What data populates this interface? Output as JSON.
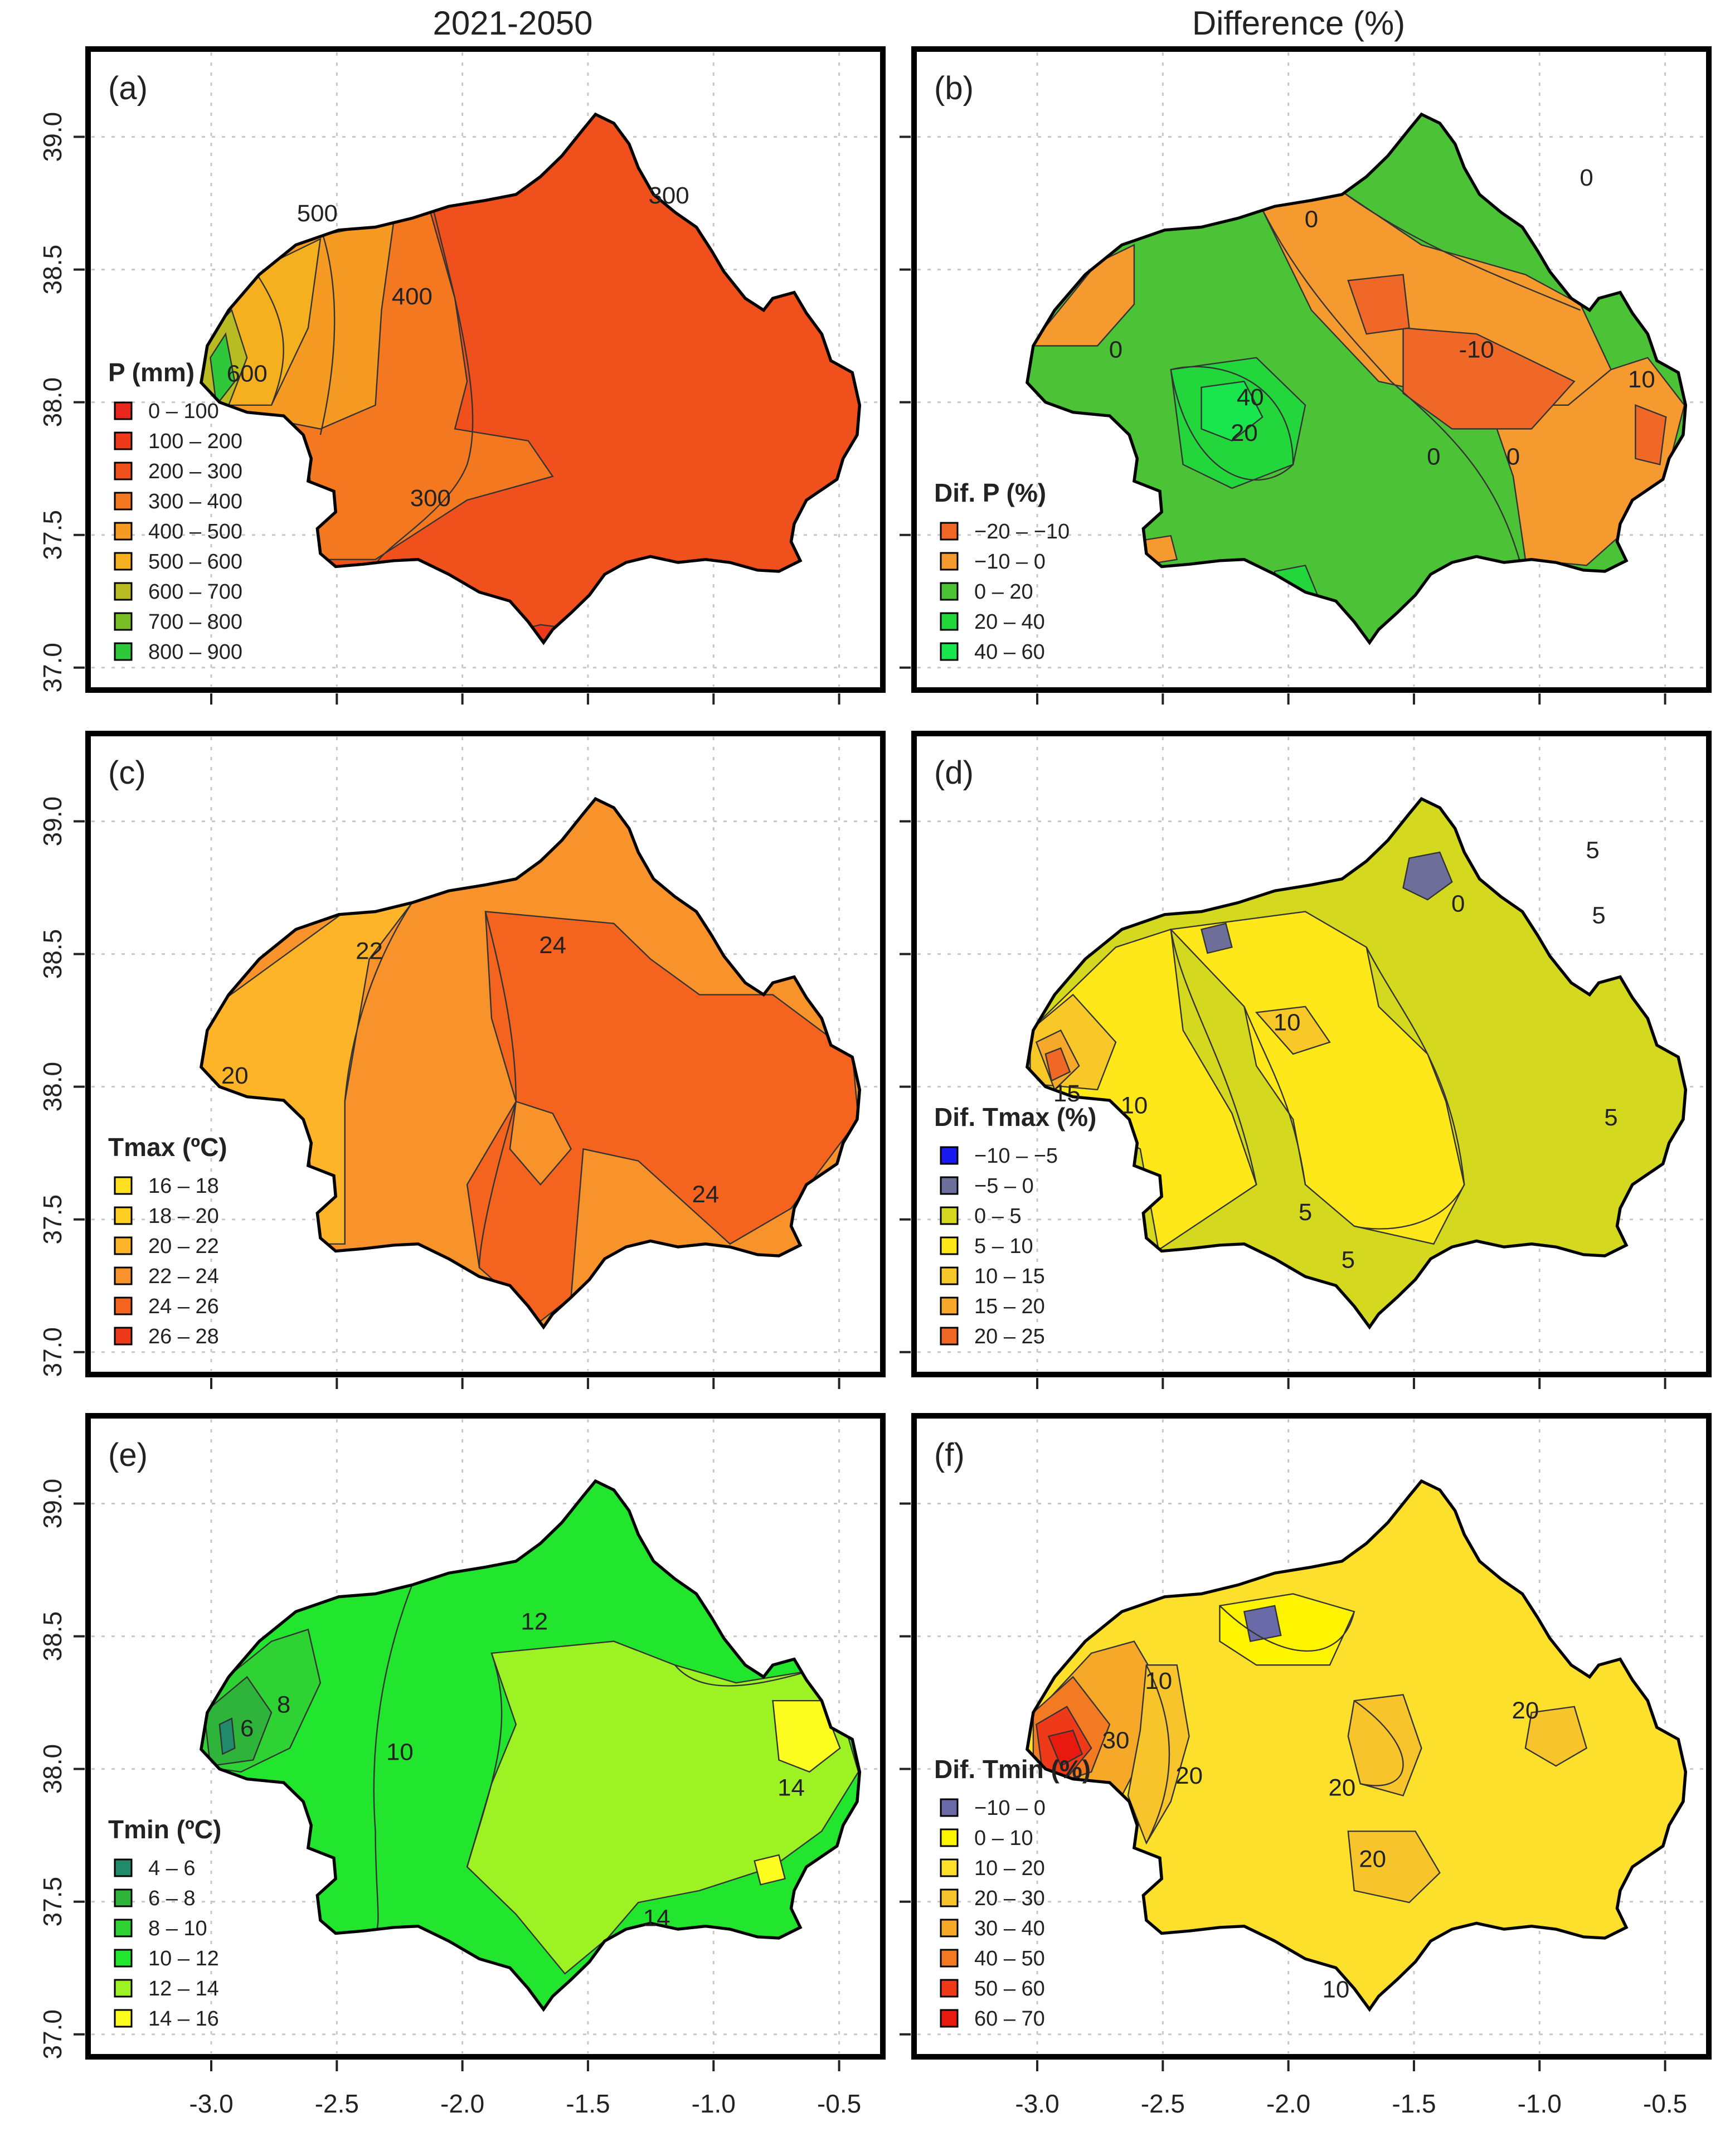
{
  "column_titles": [
    "2021-2050",
    "Difference (%)"
  ],
  "y_ticks": [
    "37.0",
    "37.5",
    "38.0",
    "38.5",
    "39.0"
  ],
  "x_ticks": [
    "-3.0",
    "-2.5",
    "-2.0",
    "-1.5",
    "-1.0",
    "-0.5"
  ],
  "colors": {
    "p_0_100": "#e8281c",
    "p_100_200": "#ee3a1a",
    "p_200_300": "#f0501c",
    "p_300_400": "#f47820",
    "p_400_500": "#f59a22",
    "p_500_600": "#f5b020",
    "p_600_700": "#b8bc22",
    "p_700_800": "#78c026",
    "p_800_900": "#2ec83a",
    "d_neg20": "#f06828",
    "d_neg10": "#f59a2e",
    "d_0_20": "#4cc236",
    "d_20_40": "#22d63c",
    "d_40_60": "#18e64c",
    "t_16_18": "#ffe020",
    "t_18_20": "#ffd022",
    "t_20_22": "#fdb428",
    "t_22_24": "#f8922a",
    "t_24_26": "#f4641e",
    "t_26_28": "#ee3a1a",
    "dt_neg10": "#1a1af0",
    "dt_neg5": "#6e6e9a",
    "dt_0_5": "#d4d81e",
    "dt_5_10": "#ffe81a",
    "dt_10_15": "#f8c828",
    "dt_15_20": "#f6a82a",
    "dt_20_25": "#f06826",
    "n_4_6": "#208a6a",
    "n_6_8": "#2eb43a",
    "n_8_10": "#2ed232",
    "n_10_12": "#22e62e",
    "n_12_14": "#9cf222",
    "n_14_16": "#fcfc1e",
    "f_neg10": "#6a6aa8",
    "f_0_10": "#fff400",
    "f_10_20": "#fde02c",
    "f_20_30": "#f8c42c",
    "f_30_40": "#f6a828",
    "f_40_50": "#f27a22",
    "f_50_60": "#ee3a18",
    "f_60_70": "#e81a10"
  },
  "panels": [
    {
      "tag": "(a)",
      "legend_title": "P (mm)",
      "base_color": "#f0501c",
      "legend": [
        {
          "label": "0 – 100",
          "color": "#e8281c"
        },
        {
          "label": "100 – 200",
          "color": "#ee3a1a"
        },
        {
          "label": "200 – 300",
          "color": "#f0501c"
        },
        {
          "label": "300 – 400",
          "color": "#f47820"
        },
        {
          "label": "400 – 500",
          "color": "#f59a22"
        },
        {
          "label": "500 – 600",
          "color": "#f5b020"
        },
        {
          "label": "600 – 700",
          "color": "#b8bc22"
        },
        {
          "label": "700 – 800",
          "color": "#78c026"
        },
        {
          "label": "800 – 900",
          "color": "#2ec83a"
        }
      ],
      "contour_labels": [
        "300",
        "500",
        "400",
        "600",
        "300"
      ]
    },
    {
      "tag": "(b)",
      "legend_title": "Dif. P (%)",
      "base_color": "#4cc236",
      "legend": [
        {
          "label": "−20 – −10",
          "color": "#f06828"
        },
        {
          "label": "−10 – 0",
          "color": "#f59a2e"
        },
        {
          "label": "0 – 20",
          "color": "#4cc236"
        },
        {
          "label": "20 – 40",
          "color": "#22d63c"
        },
        {
          "label": "40 – 60",
          "color": "#18e64c"
        }
      ],
      "contour_labels": [
        "0",
        "0",
        "0",
        "-10",
        "10",
        "40",
        "20",
        "0",
        "0"
      ]
    },
    {
      "tag": "(c)",
      "legend_title": "Tmax (ºC)",
      "base_color": "#f8922a",
      "legend": [
        {
          "label": "16 – 18",
          "color": "#ffe020"
        },
        {
          "label": "18 – 20",
          "color": "#ffd022"
        },
        {
          "label": "20 – 22",
          "color": "#fdb428"
        },
        {
          "label": "22 – 24",
          "color": "#f8922a"
        },
        {
          "label": "24 – 26",
          "color": "#f4641e"
        },
        {
          "label": "26 – 28",
          "color": "#ee3a1a"
        }
      ],
      "contour_labels": [
        "22",
        "24",
        "20",
        "24"
      ]
    },
    {
      "tag": "(d)",
      "legend_title": "Dif. Tmax (%)",
      "base_color": "#d4d81e",
      "legend": [
        {
          "label": "−10 – −5",
          "color": "#1a1af0"
        },
        {
          "label": "−5 – 0",
          "color": "#6e6e9a"
        },
        {
          "label": "0 – 5",
          "color": "#d4d81e"
        },
        {
          "label": "5 – 10",
          "color": "#ffe81a"
        },
        {
          "label": "10 – 15",
          "color": "#f8c828"
        },
        {
          "label": "15 – 20",
          "color": "#f6a82a"
        },
        {
          "label": "20 – 25",
          "color": "#f06826"
        }
      ],
      "contour_labels": [
        "5",
        "5",
        "0",
        "10",
        "15",
        "10",
        "5",
        "5",
        "5"
      ]
    },
    {
      "tag": "(e)",
      "legend_title": "Tmin (ºC)",
      "base_color": "#22e62e",
      "legend": [
        {
          "label": "4 – 6",
          "color": "#208a6a"
        },
        {
          "label": "6 – 8",
          "color": "#2eb43a"
        },
        {
          "label": "8 – 10",
          "color": "#2ed232"
        },
        {
          "label": "10 – 12",
          "color": "#22e62e"
        },
        {
          "label": "12 – 14",
          "color": "#9cf222"
        },
        {
          "label": "14 – 16",
          "color": "#fcfc1e"
        }
      ],
      "contour_labels": [
        "12",
        "8",
        "6",
        "10",
        "14",
        "14"
      ]
    },
    {
      "tag": "(f)",
      "legend_title": "Dif. Tmin (%)",
      "base_color": "#fde02c",
      "legend": [
        {
          "label": "−10 – 0",
          "color": "#6a6aa8"
        },
        {
          "label": "0 – 10",
          "color": "#fff400"
        },
        {
          "label": "10 – 20",
          "color": "#fde02c"
        },
        {
          "label": "20 – 30",
          "color": "#f8c42c"
        },
        {
          "label": "30 – 40",
          "color": "#f6a828"
        },
        {
          "label": "40 – 50",
          "color": "#f27a22"
        },
        {
          "label": "50 – 60",
          "color": "#ee3a18"
        },
        {
          "label": "60 – 70",
          "color": "#e81a10"
        }
      ],
      "contour_labels": [
        "10",
        "30",
        "20",
        "20",
        "20",
        "20",
        "10"
      ]
    }
  ]
}
